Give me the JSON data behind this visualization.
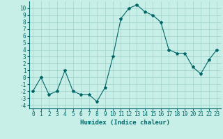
{
  "x": [
    0,
    1,
    2,
    3,
    4,
    5,
    6,
    7,
    8,
    9,
    10,
    11,
    12,
    13,
    14,
    15,
    16,
    17,
    18,
    19,
    20,
    21,
    22,
    23
  ],
  "y": [
    -2,
    0,
    -2.5,
    -2,
    1,
    -2,
    -2.5,
    -2.5,
    -3.5,
    -1.5,
    3,
    8.5,
    10,
    10.5,
    9.5,
    9,
    8,
    4,
    3.5,
    3.5,
    1.5,
    0.5,
    2.5,
    4
  ],
  "line_color": "#006666",
  "marker": "*",
  "marker_size": 3,
  "bg_color": "#c8eee8",
  "grid_color": "#a0d4cc",
  "xlabel": "Humidex (Indice chaleur)",
  "xlim": [
    -0.5,
    23.5
  ],
  "ylim": [
    -4.5,
    11
  ],
  "yticks": [
    -4,
    -3,
    -2,
    -1,
    0,
    1,
    2,
    3,
    4,
    5,
    6,
    7,
    8,
    9,
    10
  ],
  "xticks": [
    0,
    1,
    2,
    3,
    4,
    5,
    6,
    7,
    8,
    9,
    10,
    11,
    12,
    13,
    14,
    15,
    16,
    17,
    18,
    19,
    20,
    21,
    22,
    23
  ],
  "label_fontsize": 6.5,
  "tick_fontsize": 5.5
}
